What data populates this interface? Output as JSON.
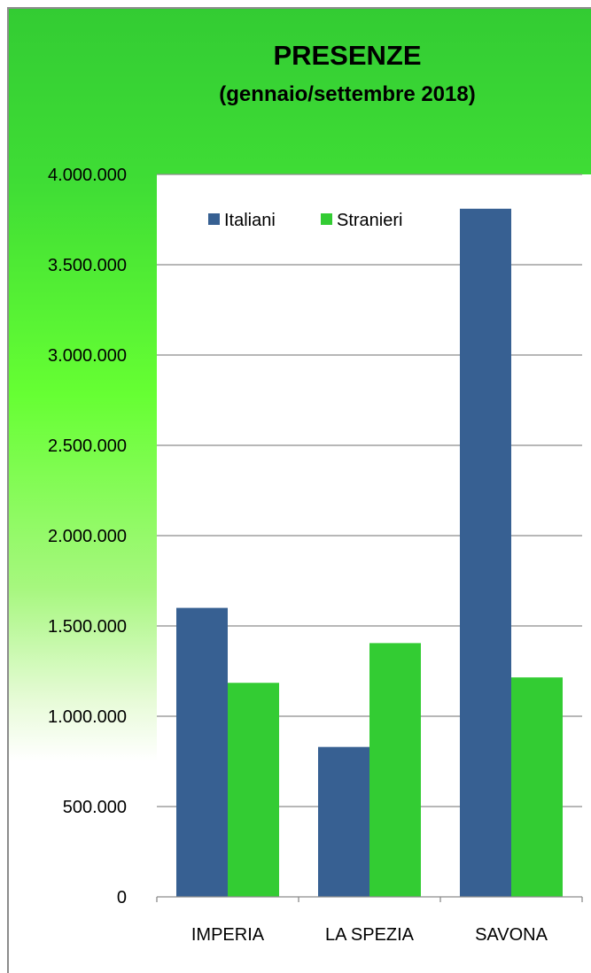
{
  "chart_data": {
    "type": "bar",
    "title": "PRESENZE",
    "subtitle": "(gennaio/settembre 2018)",
    "categories": [
      "IMPERIA",
      "LA SPEZIA",
      "SAVONA"
    ],
    "series": [
      {
        "name": "Italiani",
        "color": "#376092",
        "values": [
          1600000,
          830000,
          3810000
        ]
      },
      {
        "name": "Stranieri",
        "color": "#33cc33",
        "values": [
          1185000,
          1405000,
          1215000
        ]
      }
    ],
    "ylim": [
      0,
      4000000
    ],
    "yticks": [
      0,
      500000,
      1000000,
      1500000,
      2000000,
      2500000,
      3000000,
      3500000,
      4000000
    ],
    "ytick_labels": [
      "0",
      "500.000",
      "1.000.000",
      "1.500.000",
      "2.000.000",
      "2.500.000",
      "3.000.000",
      "3.500.000",
      "4.000.000"
    ],
    "grid": true,
    "legend_position": "top"
  }
}
